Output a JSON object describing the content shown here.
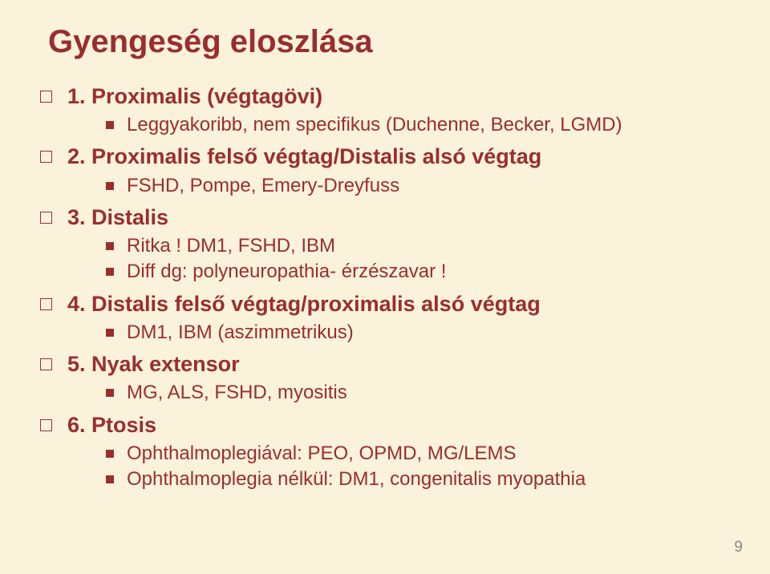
{
  "background_color": "#fbf2dc",
  "title": "Gyengeség eloszlása",
  "items": [
    {
      "heading": "1. Proximalis (végtagövi)",
      "sub": [
        "Leggyakoribb, nem specifikus (Duchenne, Becker, LGMD)"
      ]
    },
    {
      "heading": "2. Proximalis felső végtag/Distalis alsó végtag",
      "sub": [
        "FSHD, Pompe, Emery-Dreyfuss"
      ]
    },
    {
      "heading": "3. Distalis",
      "sub": [
        "Ritka ! DM1, FSHD, IBM",
        "Diff dg: polyneuropathia- érzészavar !"
      ]
    },
    {
      "heading": "4. Distalis felső végtag/proximalis alsó végtag",
      "sub": [
        "DM1, IBM (aszimmetrikus)"
      ]
    },
    {
      "heading": "5. Nyak extensor",
      "sub": [
        "MG, ALS, FSHD, myositis"
      ]
    },
    {
      "heading": "6. Ptosis",
      "sub": [
        "Ophthalmoplegiával: PEO, OPMD, MG/LEMS",
        "Ophthalmoplegia nélkül: DM1, congenitalis myopathia"
      ]
    }
  ],
  "page_number": "9"
}
